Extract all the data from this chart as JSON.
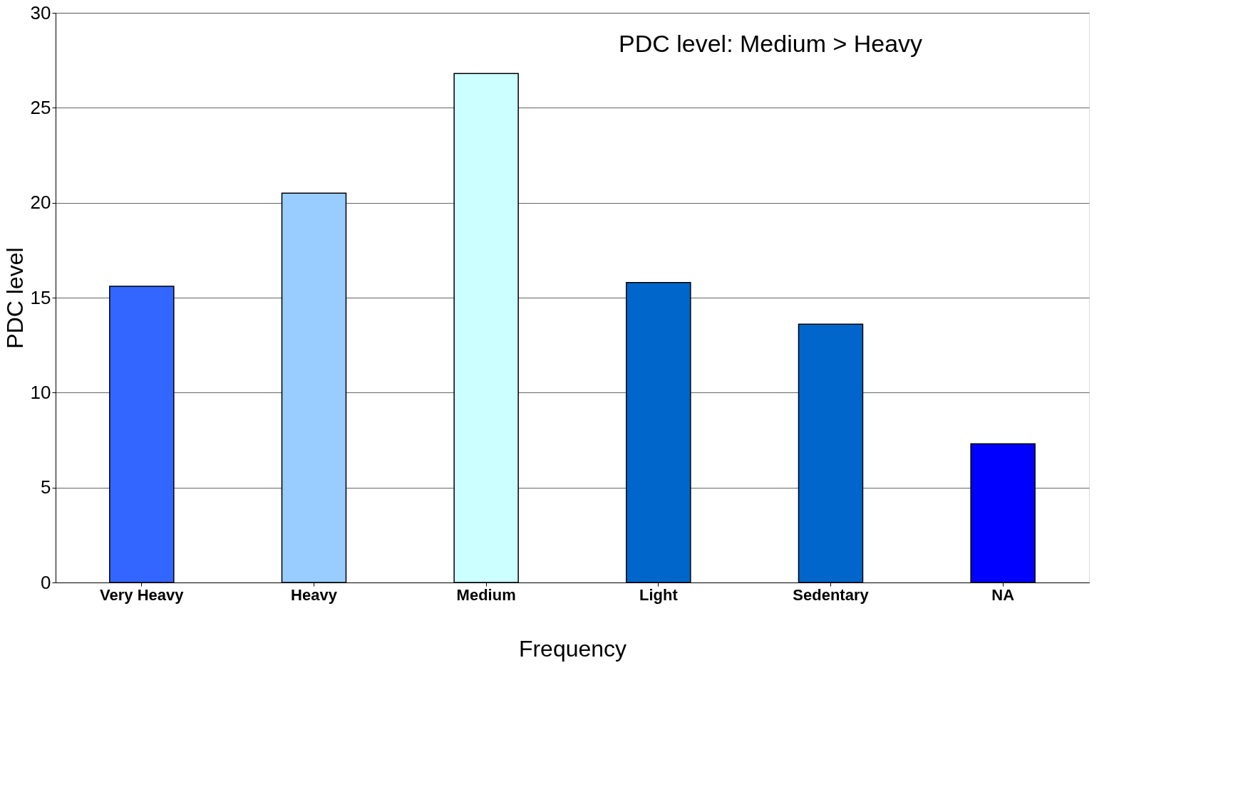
{
  "chart_data": {
    "type": "bar",
    "xlabel": "Frequency",
    "ylabel": "PDC level",
    "categories": [
      "Very Heavy",
      "Heavy",
      "Medium",
      "Light",
      "Sedentary",
      "NA"
    ],
    "values": [
      15.6,
      20.5,
      26.8,
      15.8,
      13.6,
      7.3
    ],
    "colors": [
      "#3366ff",
      "#99ccff",
      "#ccffff",
      "#0066cc",
      "#0066cc",
      "#0000ff"
    ],
    "ylim": [
      0,
      30
    ],
    "yticks": [
      0,
      5,
      10,
      15,
      20,
      25,
      30
    ],
    "grid": "y",
    "annotations": [
      "PDC level: Medium > Heavy"
    ]
  }
}
